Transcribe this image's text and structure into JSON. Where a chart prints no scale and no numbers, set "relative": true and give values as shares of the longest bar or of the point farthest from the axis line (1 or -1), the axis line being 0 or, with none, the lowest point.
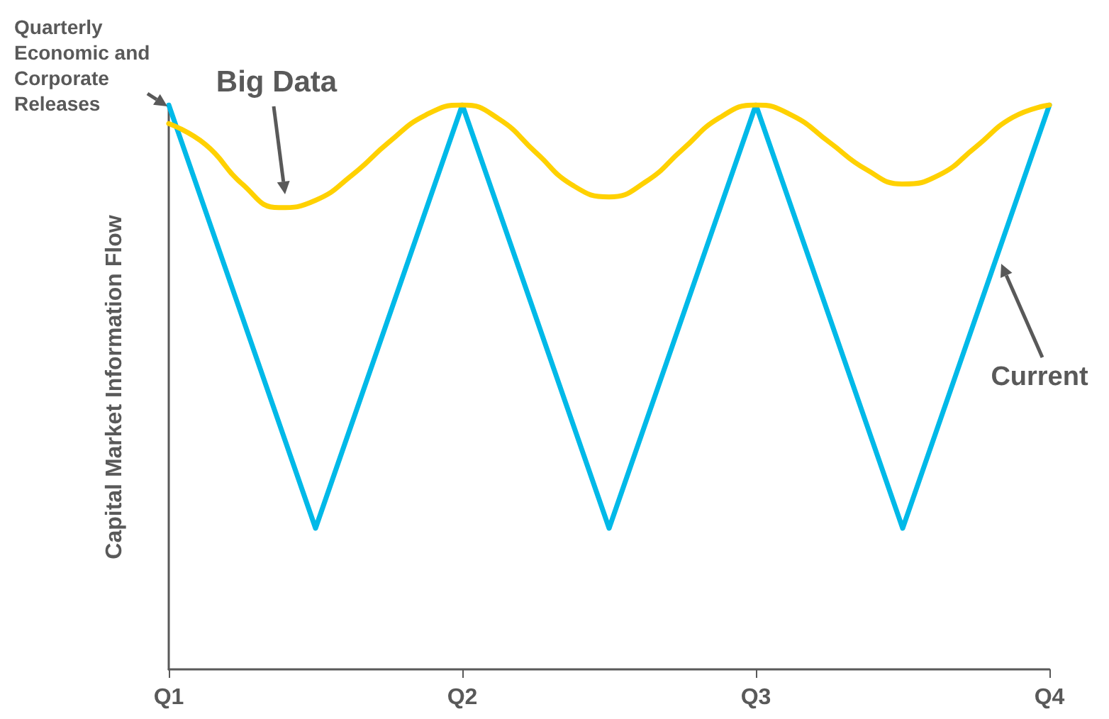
{
  "chart_data": {
    "type": "line",
    "relative": true,
    "ylabel": "Capital Market Information Flow",
    "categories": [
      "Q1",
      null,
      null,
      null,
      null,
      null,
      null,
      null,
      "Q2",
      null,
      null,
      null,
      null,
      null,
      null,
      null,
      "Q3",
      null,
      null,
      null,
      null,
      null,
      null,
      null,
      "Q4"
    ],
    "series": [
      {
        "color": "#00b9e8",
        "values": [
          1,
          null,
          null,
          null,
          0.25,
          null,
          null,
          null,
          1,
          null,
          null,
          null,
          0.25,
          null,
          null,
          null,
          1,
          null,
          null,
          null,
          0.25,
          null,
          null,
          null,
          1
        ]
      },
      {
        "color": "#ffd100",
        "values": [
          0.967,
          0.93,
          0.86,
          0.818,
          0.831,
          0.876,
          0.934,
          0.982,
          1,
          0.975,
          0.916,
          0.858,
          0.837,
          0.864,
          0.921,
          0.977,
          1,
          0.981,
          0.934,
          0.886,
          0.86,
          0.876,
          0.926,
          0.978,
          1
        ]
      }
    ],
    "annotations": [
      "Quarterly Economic and Corporate Releases",
      "Big Data",
      "Current"
    ],
    "grid": false,
    "marker": "none",
    "line_style": "solid"
  }
}
